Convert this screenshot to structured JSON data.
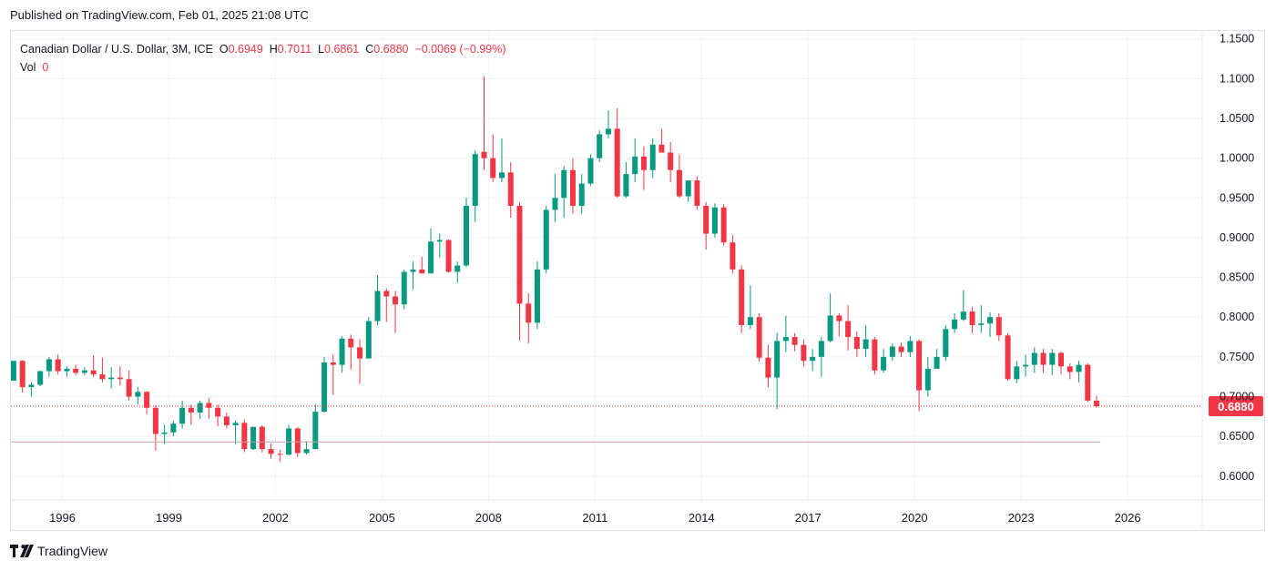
{
  "published": "Published on TradingView.com, Feb 01, 2025 21:08 UTC",
  "legend": {
    "symbol": "Canadian Dollar / U.S. Dollar, 3M, ICE",
    "o_label": "O",
    "o_value": "0.6949",
    "h_label": "H",
    "h_value": "0.7011",
    "l_label": "L",
    "l_value": "0.6861",
    "c_label": "C",
    "c_value": "0.6880",
    "change": "−0.0069 (−0.99%)",
    "vol_label": "Vol",
    "vol_value": "0"
  },
  "price_tag": "0.6880",
  "logo_text": "TradingView",
  "colors": {
    "up": "#089981",
    "down": "#f23645",
    "grid": "#f0f3fa",
    "text": "#131722"
  },
  "chart_data": {
    "type": "candlestick",
    "ylim": [
      0.57,
      1.16
    ],
    "y_ticks": [
      "1.1500",
      "1.1000",
      "1.0500",
      "1.0000",
      "0.9500",
      "0.9000",
      "0.8500",
      "0.8000",
      "0.7500",
      "0.7000",
      "0.6500",
      "0.6000"
    ],
    "x_ticks": [
      "1996",
      "1999",
      "2002",
      "2005",
      "2008",
      "2011",
      "2014",
      "2017",
      "2020",
      "2023",
      "2026"
    ],
    "x_start_year": 1994.55,
    "x_end_year": 2028.1,
    "last_close": 0.688,
    "volume_line": 0.643,
    "candles": [
      {
        "t": 1994.625,
        "o": 0.72,
        "h": 0.745,
        "l": 0.72,
        "c": 0.745
      },
      {
        "t": 1994.875,
        "o": 0.745,
        "h": 0.746,
        "l": 0.705,
        "c": 0.712
      },
      {
        "t": 1995.125,
        "o": 0.712,
        "h": 0.718,
        "l": 0.7,
        "c": 0.715
      },
      {
        "t": 1995.375,
        "o": 0.715,
        "h": 0.733,
        "l": 0.713,
        "c": 0.732
      },
      {
        "t": 1995.625,
        "o": 0.732,
        "h": 0.75,
        "l": 0.725,
        "c": 0.747
      },
      {
        "t": 1995.875,
        "o": 0.747,
        "h": 0.753,
        "l": 0.728,
        "c": 0.732
      },
      {
        "t": 1996.125,
        "o": 0.732,
        "h": 0.738,
        "l": 0.725,
        "c": 0.735
      },
      {
        "t": 1996.375,
        "o": 0.735,
        "h": 0.74,
        "l": 0.727,
        "c": 0.73
      },
      {
        "t": 1996.625,
        "o": 0.73,
        "h": 0.737,
        "l": 0.727,
        "c": 0.733
      },
      {
        "t": 1996.875,
        "o": 0.733,
        "h": 0.752,
        "l": 0.725,
        "c": 0.728
      },
      {
        "t": 1997.125,
        "o": 0.728,
        "h": 0.749,
        "l": 0.718,
        "c": 0.722
      },
      {
        "t": 1997.375,
        "o": 0.722,
        "h": 0.737,
        "l": 0.71,
        "c": 0.724
      },
      {
        "t": 1997.625,
        "o": 0.724,
        "h": 0.738,
        "l": 0.714,
        "c": 0.722
      },
      {
        "t": 1997.875,
        "o": 0.722,
        "h": 0.733,
        "l": 0.695,
        "c": 0.7
      },
      {
        "t": 1998.125,
        "o": 0.7,
        "h": 0.712,
        "l": 0.69,
        "c": 0.706
      },
      {
        "t": 1998.375,
        "o": 0.706,
        "h": 0.707,
        "l": 0.678,
        "c": 0.686
      },
      {
        "t": 1998.625,
        "o": 0.686,
        "h": 0.689,
        "l": 0.632,
        "c": 0.653
      },
      {
        "t": 1998.875,
        "o": 0.653,
        "h": 0.664,
        "l": 0.64,
        "c": 0.655
      },
      {
        "t": 1999.125,
        "o": 0.655,
        "h": 0.67,
        "l": 0.65,
        "c": 0.666
      },
      {
        "t": 1999.375,
        "o": 0.666,
        "h": 0.695,
        "l": 0.66,
        "c": 0.686
      },
      {
        "t": 1999.625,
        "o": 0.686,
        "h": 0.69,
        "l": 0.664,
        "c": 0.68
      },
      {
        "t": 1999.875,
        "o": 0.68,
        "h": 0.695,
        "l": 0.672,
        "c": 0.692
      },
      {
        "t": 2000.125,
        "o": 0.692,
        "h": 0.698,
        "l": 0.672,
        "c": 0.686
      },
      {
        "t": 2000.375,
        "o": 0.686,
        "h": 0.69,
        "l": 0.663,
        "c": 0.675
      },
      {
        "t": 2000.625,
        "o": 0.675,
        "h": 0.68,
        "l": 0.66,
        "c": 0.664
      },
      {
        "t": 2000.875,
        "o": 0.664,
        "h": 0.67,
        "l": 0.64,
        "c": 0.667
      },
      {
        "t": 2001.125,
        "o": 0.667,
        "h": 0.671,
        "l": 0.63,
        "c": 0.634
      },
      {
        "t": 2001.375,
        "o": 0.634,
        "h": 0.662,
        "l": 0.633,
        "c": 0.662
      },
      {
        "t": 2001.625,
        "o": 0.662,
        "h": 0.664,
        "l": 0.63,
        "c": 0.634
      },
      {
        "t": 2001.875,
        "o": 0.634,
        "h": 0.641,
        "l": 0.622,
        "c": 0.628
      },
      {
        "t": 2002.125,
        "o": 0.628,
        "h": 0.633,
        "l": 0.618,
        "c": 0.627
      },
      {
        "t": 2002.375,
        "o": 0.627,
        "h": 0.665,
        "l": 0.626,
        "c": 0.66
      },
      {
        "t": 2002.625,
        "o": 0.66,
        "h": 0.662,
        "l": 0.624,
        "c": 0.629
      },
      {
        "t": 2002.875,
        "o": 0.629,
        "h": 0.644,
        "l": 0.627,
        "c": 0.634
      },
      {
        "t": 2003.125,
        "o": 0.634,
        "h": 0.69,
        "l": 0.634,
        "c": 0.681
      },
      {
        "t": 2003.375,
        "o": 0.681,
        "h": 0.75,
        "l": 0.68,
        "c": 0.743
      },
      {
        "t": 2003.625,
        "o": 0.743,
        "h": 0.753,
        "l": 0.702,
        "c": 0.74
      },
      {
        "t": 2003.875,
        "o": 0.74,
        "h": 0.776,
        "l": 0.73,
        "c": 0.773
      },
      {
        "t": 2004.125,
        "o": 0.773,
        "h": 0.778,
        "l": 0.734,
        "c": 0.762
      },
      {
        "t": 2004.375,
        "o": 0.762,
        "h": 0.772,
        "l": 0.716,
        "c": 0.748
      },
      {
        "t": 2004.625,
        "o": 0.748,
        "h": 0.8,
        "l": 0.748,
        "c": 0.795
      },
      {
        "t": 2004.875,
        "o": 0.795,
        "h": 0.853,
        "l": 0.79,
        "c": 0.833
      },
      {
        "t": 2005.125,
        "o": 0.833,
        "h": 0.836,
        "l": 0.794,
        "c": 0.826
      },
      {
        "t": 2005.375,
        "o": 0.826,
        "h": 0.833,
        "l": 0.78,
        "c": 0.816
      },
      {
        "t": 2005.625,
        "o": 0.816,
        "h": 0.86,
        "l": 0.81,
        "c": 0.857
      },
      {
        "t": 2005.875,
        "o": 0.857,
        "h": 0.87,
        "l": 0.835,
        "c": 0.86
      },
      {
        "t": 2006.125,
        "o": 0.86,
        "h": 0.876,
        "l": 0.855,
        "c": 0.855
      },
      {
        "t": 2006.375,
        "o": 0.855,
        "h": 0.912,
        "l": 0.855,
        "c": 0.895
      },
      {
        "t": 2006.625,
        "o": 0.895,
        "h": 0.905,
        "l": 0.875,
        "c": 0.897
      },
      {
        "t": 2006.875,
        "o": 0.897,
        "h": 0.898,
        "l": 0.856,
        "c": 0.857
      },
      {
        "t": 2007.125,
        "o": 0.857,
        "h": 0.87,
        "l": 0.843,
        "c": 0.865
      },
      {
        "t": 2007.375,
        "o": 0.865,
        "h": 0.95,
        "l": 0.863,
        "c": 0.94
      },
      {
        "t": 2007.625,
        "o": 0.94,
        "h": 1.01,
        "l": 0.92,
        "c": 1.005
      },
      {
        "t": 2007.875,
        "o": 1.008,
        "h": 1.103,
        "l": 0.985,
        "c": 1.0
      },
      {
        "t": 2008.125,
        "o": 1.0,
        "h": 1.03,
        "l": 0.97,
        "c": 0.975
      },
      {
        "t": 2008.375,
        "o": 0.975,
        "h": 1.025,
        "l": 0.97,
        "c": 0.982
      },
      {
        "t": 2008.625,
        "o": 0.982,
        "h": 0.995,
        "l": 0.925,
        "c": 0.94
      },
      {
        "t": 2008.875,
        "o": 0.94,
        "h": 0.944,
        "l": 0.77,
        "c": 0.817
      },
      {
        "t": 2009.125,
        "o": 0.817,
        "h": 0.83,
        "l": 0.767,
        "c": 0.793
      },
      {
        "t": 2009.375,
        "o": 0.793,
        "h": 0.87,
        "l": 0.785,
        "c": 0.86
      },
      {
        "t": 2009.625,
        "o": 0.86,
        "h": 0.94,
        "l": 0.855,
        "c": 0.935
      },
      {
        "t": 2009.875,
        "o": 0.935,
        "h": 0.98,
        "l": 0.92,
        "c": 0.95
      },
      {
        "t": 2010.125,
        "o": 0.95,
        "h": 0.99,
        "l": 0.925,
        "c": 0.985
      },
      {
        "t": 2010.375,
        "o": 0.985,
        "h": 1.0,
        "l": 0.93,
        "c": 0.94
      },
      {
        "t": 2010.625,
        "o": 0.94,
        "h": 0.98,
        "l": 0.93,
        "c": 0.968
      },
      {
        "t": 2010.875,
        "o": 0.968,
        "h": 1.005,
        "l": 0.965,
        "c": 1.0
      },
      {
        "t": 2011.125,
        "o": 1.0,
        "h": 1.035,
        "l": 0.995,
        "c": 1.03
      },
      {
        "t": 2011.375,
        "o": 1.03,
        "h": 1.06,
        "l": 1.025,
        "c": 1.037
      },
      {
        "t": 2011.625,
        "o": 1.037,
        "h": 1.063,
        "l": 0.95,
        "c": 0.952
      },
      {
        "t": 2011.875,
        "o": 0.952,
        "h": 0.995,
        "l": 0.95,
        "c": 0.98
      },
      {
        "t": 2012.125,
        "o": 0.98,
        "h": 1.025,
        "l": 0.97,
        "c": 1.002
      },
      {
        "t": 2012.375,
        "o": 1.002,
        "h": 1.015,
        "l": 0.96,
        "c": 0.985
      },
      {
        "t": 2012.625,
        "o": 0.985,
        "h": 1.025,
        "l": 0.975,
        "c": 1.017
      },
      {
        "t": 2012.875,
        "o": 1.017,
        "h": 1.037,
        "l": 1.01,
        "c": 1.007
      },
      {
        "t": 2013.125,
        "o": 1.007,
        "h": 1.02,
        "l": 0.97,
        "c": 0.985
      },
      {
        "t": 2013.375,
        "o": 0.985,
        "h": 1.005,
        "l": 0.95,
        "c": 0.952
      },
      {
        "t": 2013.625,
        "o": 0.952,
        "h": 0.97,
        "l": 0.945,
        "c": 0.972
      },
      {
        "t": 2013.875,
        "o": 0.972,
        "h": 0.977,
        "l": 0.935,
        "c": 0.94
      },
      {
        "t": 2014.125,
        "o": 0.94,
        "h": 0.945,
        "l": 0.885,
        "c": 0.905
      },
      {
        "t": 2014.375,
        "o": 0.905,
        "h": 0.943,
        "l": 0.9,
        "c": 0.938
      },
      {
        "t": 2014.625,
        "o": 0.938,
        "h": 0.942,
        "l": 0.89,
        "c": 0.894
      },
      {
        "t": 2014.875,
        "o": 0.894,
        "h": 0.903,
        "l": 0.855,
        "c": 0.86
      },
      {
        "t": 2015.125,
        "o": 0.86,
        "h": 0.865,
        "l": 0.78,
        "c": 0.79
      },
      {
        "t": 2015.375,
        "o": 0.79,
        "h": 0.84,
        "l": 0.785,
        "c": 0.8
      },
      {
        "t": 2015.625,
        "o": 0.8,
        "h": 0.805,
        "l": 0.744,
        "c": 0.749
      },
      {
        "t": 2015.875,
        "o": 0.749,
        "h": 0.765,
        "l": 0.712,
        "c": 0.724
      },
      {
        "t": 2016.125,
        "o": 0.724,
        "h": 0.78,
        "l": 0.684,
        "c": 0.77
      },
      {
        "t": 2016.375,
        "o": 0.77,
        "h": 0.802,
        "l": 0.756,
        "c": 0.775
      },
      {
        "t": 2016.625,
        "o": 0.775,
        "h": 0.78,
        "l": 0.757,
        "c": 0.765
      },
      {
        "t": 2016.875,
        "o": 0.765,
        "h": 0.772,
        "l": 0.738,
        "c": 0.745
      },
      {
        "t": 2017.125,
        "o": 0.745,
        "h": 0.76,
        "l": 0.732,
        "c": 0.75
      },
      {
        "t": 2017.375,
        "o": 0.75,
        "h": 0.775,
        "l": 0.725,
        "c": 0.77
      },
      {
        "t": 2017.625,
        "o": 0.77,
        "h": 0.83,
        "l": 0.768,
        "c": 0.802
      },
      {
        "t": 2017.875,
        "o": 0.802,
        "h": 0.805,
        "l": 0.776,
        "c": 0.795
      },
      {
        "t": 2018.125,
        "o": 0.795,
        "h": 0.815,
        "l": 0.758,
        "c": 0.775
      },
      {
        "t": 2018.375,
        "o": 0.775,
        "h": 0.782,
        "l": 0.75,
        "c": 0.76
      },
      {
        "t": 2018.625,
        "o": 0.76,
        "h": 0.79,
        "l": 0.75,
        "c": 0.772
      },
      {
        "t": 2018.875,
        "o": 0.772,
        "h": 0.775,
        "l": 0.728,
        "c": 0.733
      },
      {
        "t": 2019.125,
        "o": 0.733,
        "h": 0.76,
        "l": 0.73,
        "c": 0.75
      },
      {
        "t": 2019.375,
        "o": 0.75,
        "h": 0.767,
        "l": 0.745,
        "c": 0.763
      },
      {
        "t": 2019.625,
        "o": 0.763,
        "h": 0.768,
        "l": 0.75,
        "c": 0.756
      },
      {
        "t": 2019.875,
        "o": 0.756,
        "h": 0.776,
        "l": 0.75,
        "c": 0.77
      },
      {
        "t": 2020.125,
        "o": 0.77,
        "h": 0.772,
        "l": 0.682,
        "c": 0.708
      },
      {
        "t": 2020.375,
        "o": 0.708,
        "h": 0.75,
        "l": 0.7,
        "c": 0.735
      },
      {
        "t": 2020.625,
        "o": 0.735,
        "h": 0.76,
        "l": 0.735,
        "c": 0.75
      },
      {
        "t": 2020.875,
        "o": 0.75,
        "h": 0.79,
        "l": 0.745,
        "c": 0.785
      },
      {
        "t": 2021.125,
        "o": 0.785,
        "h": 0.805,
        "l": 0.78,
        "c": 0.797
      },
      {
        "t": 2021.375,
        "o": 0.797,
        "h": 0.834,
        "l": 0.795,
        "c": 0.807
      },
      {
        "t": 2021.625,
        "o": 0.807,
        "h": 0.813,
        "l": 0.78,
        "c": 0.79
      },
      {
        "t": 2021.875,
        "o": 0.79,
        "h": 0.815,
        "l": 0.78,
        "c": 0.792
      },
      {
        "t": 2022.125,
        "o": 0.792,
        "h": 0.806,
        "l": 0.775,
        "c": 0.8
      },
      {
        "t": 2022.375,
        "o": 0.8,
        "h": 0.805,
        "l": 0.77,
        "c": 0.777
      },
      {
        "t": 2022.625,
        "o": 0.777,
        "h": 0.78,
        "l": 0.72,
        "c": 0.722
      },
      {
        "t": 2022.875,
        "o": 0.722,
        "h": 0.745,
        "l": 0.717,
        "c": 0.738
      },
      {
        "t": 2023.125,
        "o": 0.738,
        "h": 0.753,
        "l": 0.725,
        "c": 0.74
      },
      {
        "t": 2023.375,
        "o": 0.74,
        "h": 0.762,
        "l": 0.73,
        "c": 0.755
      },
      {
        "t": 2023.625,
        "o": 0.755,
        "h": 0.76,
        "l": 0.73,
        "c": 0.74
      },
      {
        "t": 2023.875,
        "o": 0.74,
        "h": 0.76,
        "l": 0.727,
        "c": 0.755
      },
      {
        "t": 2024.125,
        "o": 0.755,
        "h": 0.757,
        "l": 0.728,
        "c": 0.738
      },
      {
        "t": 2024.375,
        "o": 0.738,
        "h": 0.742,
        "l": 0.722,
        "c": 0.731
      },
      {
        "t": 2024.625,
        "o": 0.731,
        "h": 0.745,
        "l": 0.718,
        "c": 0.74
      },
      {
        "t": 2024.875,
        "o": 0.74,
        "h": 0.742,
        "l": 0.693,
        "c": 0.695
      },
      {
        "t": 2025.125,
        "o": 0.6949,
        "h": 0.7011,
        "l": 0.6861,
        "c": 0.688
      }
    ]
  }
}
